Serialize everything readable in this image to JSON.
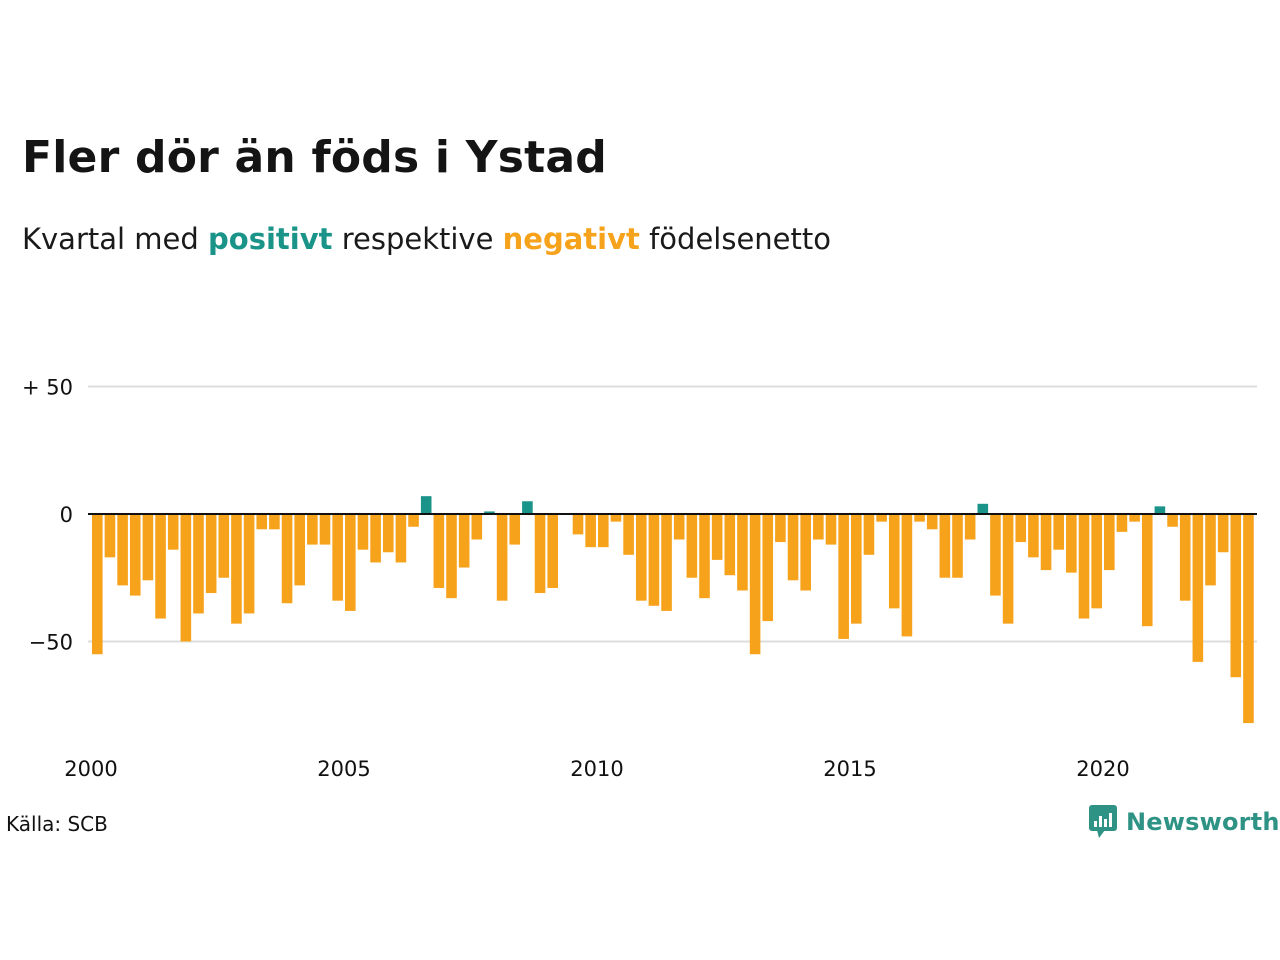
{
  "title": "Fler dör än föds i Ystad",
  "subtitle": {
    "prefix": "Kvartal med",
    "positive_word": "positivt",
    "middle": "respektive",
    "negative_word": "negativt",
    "suffix": "födelsenetto"
  },
  "source": "Källa: SCB",
  "brand": "Newsworthy",
  "colors": {
    "positive": "#1a9488",
    "negative": "#f7a21b",
    "grid": "#dddddd",
    "brand": "#2e9384"
  },
  "chart_data": {
    "type": "bar",
    "title": "Fler dör än föds i Ystad",
    "x_start": "2000 Q1",
    "x_ticks": [
      "2000",
      "2005",
      "2010",
      "2015",
      "2020"
    ],
    "y_ticks": [
      {
        "value": 50,
        "label": "+ 50"
      },
      {
        "value": 0,
        "label": "0"
      },
      {
        "value": -50,
        "label": "−50"
      }
    ],
    "ylim": [
      -85,
      55
    ],
    "grid": true,
    "values": [
      -55,
      -17,
      -28,
      -32,
      -26,
      -41,
      -14,
      -50,
      -39,
      -31,
      -25,
      -43,
      -39,
      -6,
      -6,
      -35,
      -28,
      -12,
      -12,
      -34,
      -38,
      -14,
      -19,
      -15,
      -19,
      -5,
      7,
      -29,
      -33,
      -21,
      -10,
      1,
      -34,
      -12,
      5,
      -31,
      -29,
      0,
      -8,
      -13,
      -13,
      -3,
      -16,
      -34,
      -36,
      -38,
      -10,
      -25,
      -33,
      -18,
      -24,
      -30,
      -55,
      -42,
      -11,
      -26,
      -30,
      -10,
      -12,
      -49,
      -43,
      -16,
      -3,
      -37,
      -48,
      -3,
      -6,
      -25,
      -25,
      -10,
      4,
      -32,
      -43,
      -11,
      -17,
      -22,
      -14,
      -23,
      -41,
      -37,
      -22,
      -7,
      -3,
      -44,
      3,
      -5,
      -34,
      -58,
      -28,
      -15,
      -64,
      -82
    ]
  }
}
